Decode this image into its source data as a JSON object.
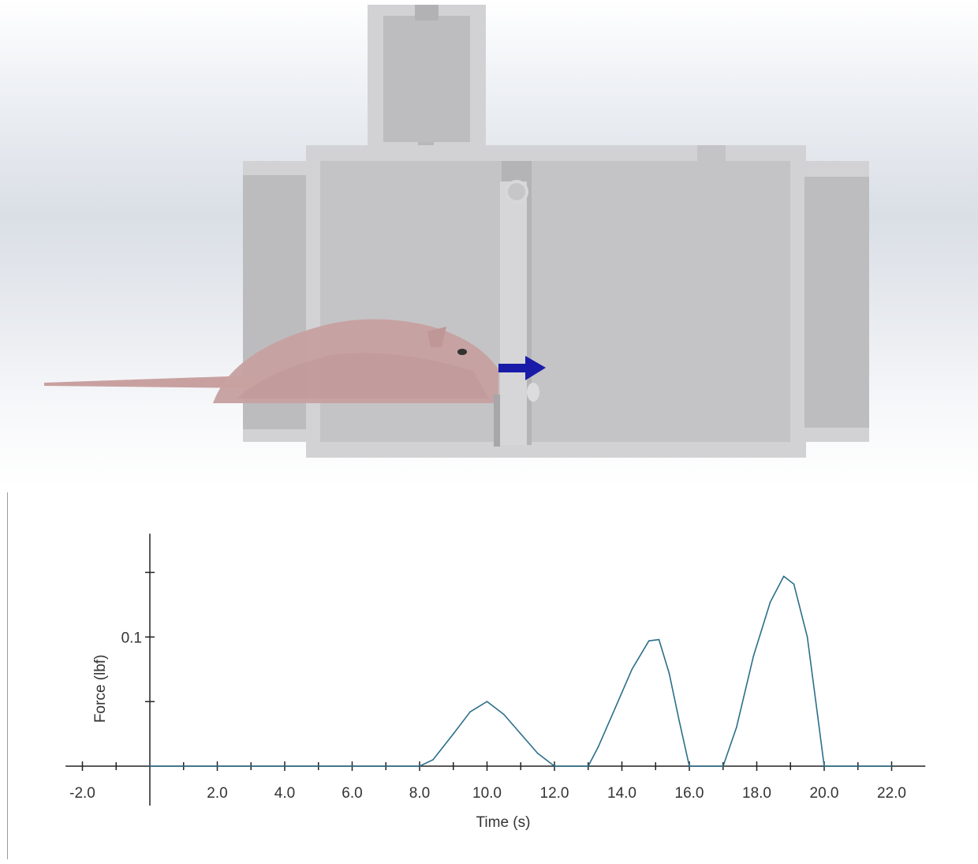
{
  "viewport": {
    "colors": {
      "body": "#c5c5c7",
      "body_inner": "#b6b6b9",
      "outline": "#d2d2d4",
      "flap": "#d4d4d6",
      "rat": "#c7a1a1",
      "arrow": "#1a1aa8"
    }
  },
  "chart_data": {
    "type": "line",
    "xlabel": "Time (s)",
    "ylabel": "Force (lbf)",
    "xlim": [
      -2.5,
      23.0
    ],
    "ylim": [
      0,
      0.15
    ],
    "x_ticks": [
      -2.0,
      2.0,
      4.0,
      6.0,
      8.0,
      10.0,
      12.0,
      14.0,
      16.0,
      18.0,
      20.0,
      22.0
    ],
    "x_tick_labels": [
      "-2.0",
      "2.0",
      "4.0",
      "6.0",
      "8.0",
      "10.0",
      "12.0",
      "14.0",
      "16.0",
      "18.0",
      "20.0",
      "22.0"
    ],
    "x_minor_ticks": [
      -1.0,
      1.0,
      3.0,
      5.0,
      7.0,
      9.0,
      11.0,
      13.0,
      15.0,
      17.0,
      19.0,
      21.0
    ],
    "y_ticks": [
      0.05,
      0.1,
      0.15
    ],
    "y_tick_labels": [
      "",
      "0.1",
      ""
    ],
    "grid": false,
    "line_color": "#2b6f8a",
    "series": [
      {
        "x": [
          0,
          8.0,
          8.4,
          9.0,
          9.5,
          10.0,
          10.5,
          11.0,
          11.5,
          12.0,
          13.0,
          13.3,
          13.8,
          14.3,
          14.8,
          15.1,
          15.4,
          15.7,
          16.0,
          17.0,
          17.4,
          17.9,
          18.4,
          18.8,
          19.1,
          19.5,
          19.8,
          20.0,
          22.0
        ],
        "y": [
          0,
          0,
          0.005,
          0.025,
          0.042,
          0.05,
          0.04,
          0.025,
          0.01,
          0.0,
          0.0,
          0.015,
          0.045,
          0.075,
          0.097,
          0.098,
          0.072,
          0.035,
          0.0,
          0.0,
          0.03,
          0.085,
          0.127,
          0.147,
          0.141,
          0.1,
          0.04,
          0.0,
          0.0
        ]
      }
    ]
  }
}
